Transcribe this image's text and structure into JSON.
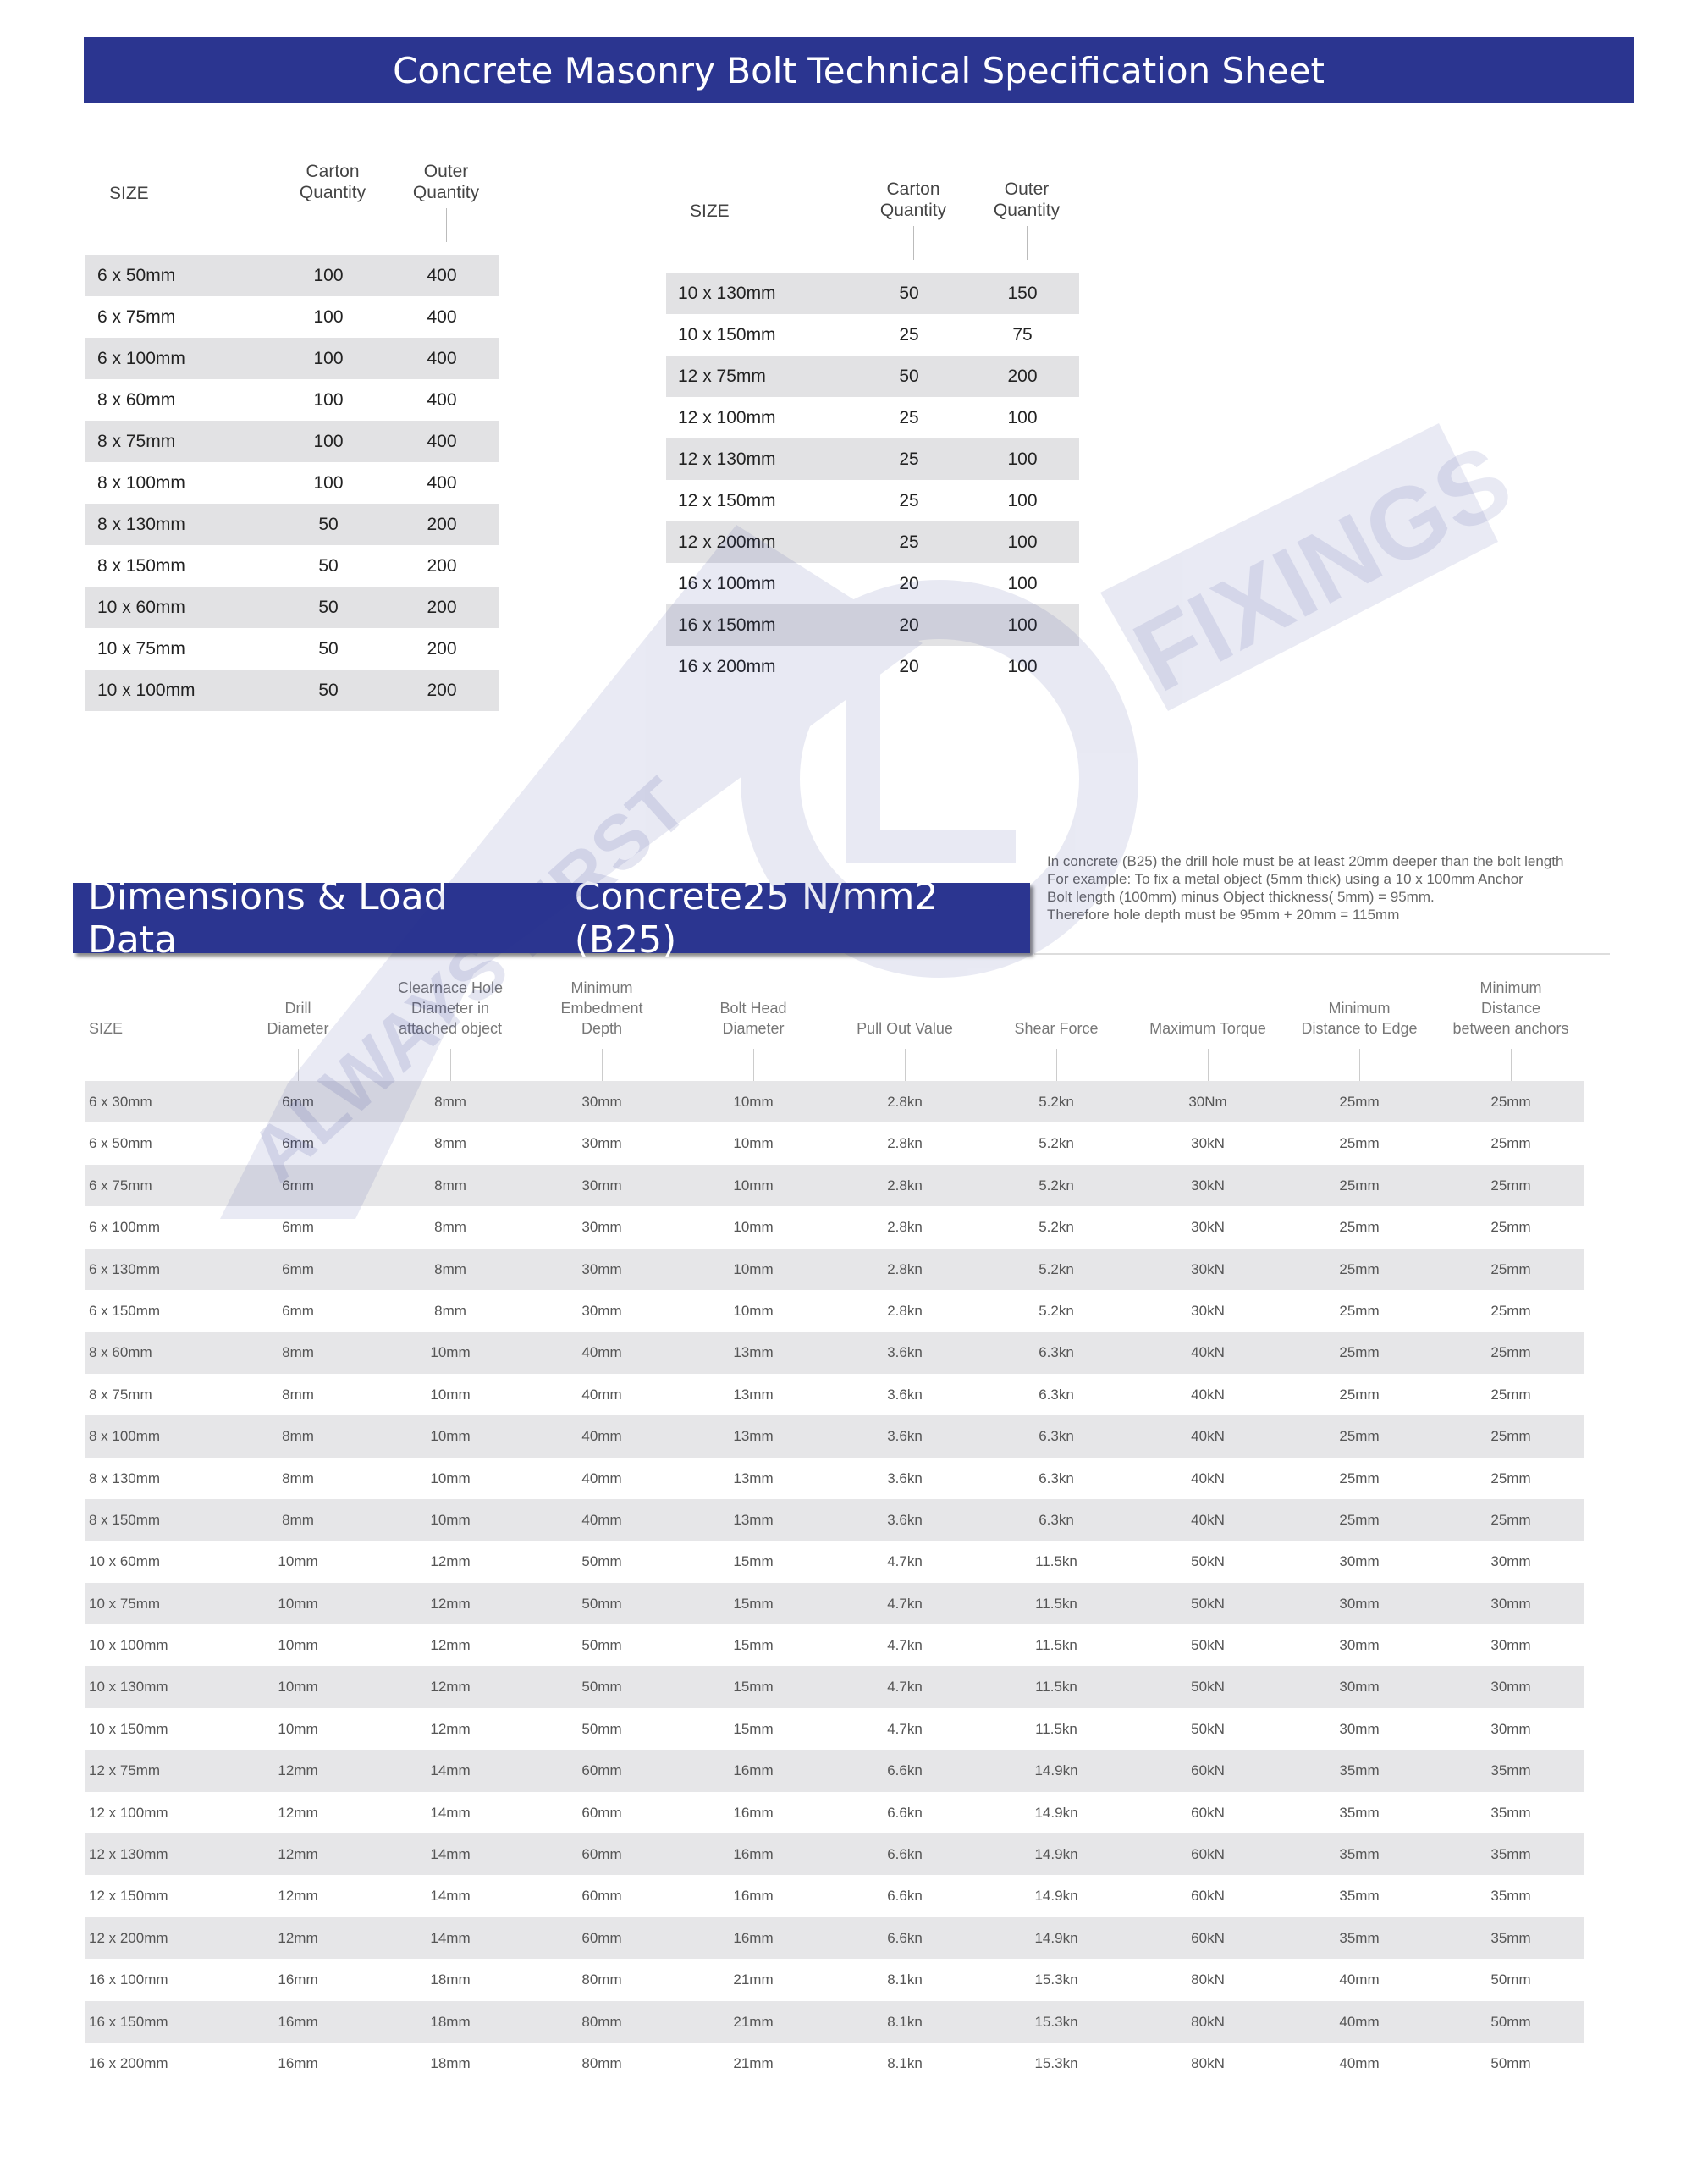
{
  "title": "Concrete Masonry Bolt Technical Specification Sheet",
  "quantity_headers": {
    "size": "SIZE",
    "carton": "Carton\nQuantity",
    "outer": "Outer\nQuantity"
  },
  "quantity_table_left": [
    [
      "6 x 50mm",
      "100",
      "400"
    ],
    [
      "6 x 75mm",
      "100",
      "400"
    ],
    [
      "6 x 100mm",
      "100",
      "400"
    ],
    [
      "8 x 60mm",
      "100",
      "400"
    ],
    [
      "8 x 75mm",
      "100",
      "400"
    ],
    [
      "8 x 100mm",
      "100",
      "400"
    ],
    [
      "8 x 130mm",
      "50",
      "200"
    ],
    [
      "8 x 150mm",
      "50",
      "200"
    ],
    [
      "10 x 60mm",
      "50",
      "200"
    ],
    [
      "10 x 75mm",
      "50",
      "200"
    ],
    [
      "10 x 100mm",
      "50",
      "200"
    ]
  ],
  "quantity_table_right": [
    [
      "10 x 130mm",
      "50",
      "150"
    ],
    [
      "10 x 150mm",
      "25",
      "75"
    ],
    [
      "12 x 75mm",
      "50",
      "200"
    ],
    [
      "12 x 100mm",
      "25",
      "100"
    ],
    [
      "12 x 130mm",
      "25",
      "100"
    ],
    [
      "12 x 150mm",
      "25",
      "100"
    ],
    [
      "12 x 200mm",
      "25",
      "100"
    ],
    [
      "16 x 100mm",
      "20",
      "100"
    ],
    [
      "16 x 150mm",
      "20",
      "100"
    ],
    [
      "16 x 200mm",
      "20",
      "100"
    ]
  ],
  "section": {
    "title": "Dimensions & Load Data",
    "subtitle": "Concrete25 N/mm2 (B25)"
  },
  "note": [
    "In concrete (B25) the drill hole must be at least 20mm deeper than the bolt length",
    "For example: To fix a metal object (5mm thick) using a 10 x 100mm Anchor",
    "Bolt length (100mm) minus Object thickness( 5mm) = 95mm.",
    "Therefore hole depth must be 95mm + 20mm = 115mm"
  ],
  "watermark": {
    "text1": "ALWAYS FIRST",
    "text2": "FIXINGS",
    "color": "#2b3590"
  },
  "load_headers": [
    "SIZE",
    "Drill\nDiameter",
    "Clearnace Hole\nDiameter in\nattached object",
    "Minimum\nEmbedment\nDepth",
    "Bolt Head\nDiameter",
    "Pull Out Value",
    "Shear Force",
    "Maximum Torque",
    "Minimum\nDistance to Edge",
    "Minimum\nDistance\nbetween anchors"
  ],
  "load_rows": [
    [
      "6 x 30mm",
      "6mm",
      "8mm",
      "30mm",
      "10mm",
      "2.8kn",
      "5.2kn",
      "30Nm",
      "25mm",
      "25mm"
    ],
    [
      "6 x 50mm",
      "6mm",
      "8mm",
      "30mm",
      "10mm",
      "2.8kn",
      "5.2kn",
      "30kN",
      "25mm",
      "25mm"
    ],
    [
      "6 x 75mm",
      "6mm",
      "8mm",
      "30mm",
      "10mm",
      "2.8kn",
      "5.2kn",
      "30kN",
      "25mm",
      "25mm"
    ],
    [
      "6 x 100mm",
      "6mm",
      "8mm",
      "30mm",
      "10mm",
      "2.8kn",
      "5.2kn",
      "30kN",
      "25mm",
      "25mm"
    ],
    [
      "6 x 130mm",
      "6mm",
      "8mm",
      "30mm",
      "10mm",
      "2.8kn",
      "5.2kn",
      "30kN",
      "25mm",
      "25mm"
    ],
    [
      "6 x 150mm",
      "6mm",
      "8mm",
      "30mm",
      "10mm",
      "2.8kn",
      "5.2kn",
      "30kN",
      "25mm",
      "25mm"
    ],
    [
      "8 x 60mm",
      "8mm",
      "10mm",
      "40mm",
      "13mm",
      "3.6kn",
      "6.3kn",
      "40kN",
      "25mm",
      "25mm"
    ],
    [
      "8 x 75mm",
      "8mm",
      "10mm",
      "40mm",
      "13mm",
      "3.6kn",
      "6.3kn",
      "40kN",
      "25mm",
      "25mm"
    ],
    [
      "8 x 100mm",
      "8mm",
      "10mm",
      "40mm",
      "13mm",
      "3.6kn",
      "6.3kn",
      "40kN",
      "25mm",
      "25mm"
    ],
    [
      "8 x 130mm",
      "8mm",
      "10mm",
      "40mm",
      "13mm",
      "3.6kn",
      "6.3kn",
      "40kN",
      "25mm",
      "25mm"
    ],
    [
      "8 x 150mm",
      "8mm",
      "10mm",
      "40mm",
      "13mm",
      "3.6kn",
      "6.3kn",
      "40kN",
      "25mm",
      "25mm"
    ],
    [
      "10 x 60mm",
      "10mm",
      "12mm",
      "50mm",
      "15mm",
      "4.7kn",
      "11.5kn",
      "50kN",
      "30mm",
      "30mm"
    ],
    [
      "10 x 75mm",
      "10mm",
      "12mm",
      "50mm",
      "15mm",
      "4.7kn",
      "11.5kn",
      "50kN",
      "30mm",
      "30mm"
    ],
    [
      "10 x 100mm",
      "10mm",
      "12mm",
      "50mm",
      "15mm",
      "4.7kn",
      "11.5kn",
      "50kN",
      "30mm",
      "30mm"
    ],
    [
      "10 x 130mm",
      "10mm",
      "12mm",
      "50mm",
      "15mm",
      "4.7kn",
      "11.5kn",
      "50kN",
      "30mm",
      "30mm"
    ],
    [
      "10 x 150mm",
      "10mm",
      "12mm",
      "50mm",
      "15mm",
      "4.7kn",
      "11.5kn",
      "50kN",
      "30mm",
      "30mm"
    ],
    [
      "12 x 75mm",
      "12mm",
      "14mm",
      "60mm",
      "16mm",
      "6.6kn",
      "14.9kn",
      "60kN",
      "35mm",
      "35mm"
    ],
    [
      "12 x 100mm",
      "12mm",
      "14mm",
      "60mm",
      "16mm",
      "6.6kn",
      "14.9kn",
      "60kN",
      "35mm",
      "35mm"
    ],
    [
      "12 x 130mm",
      "12mm",
      "14mm",
      "60mm",
      "16mm",
      "6.6kn",
      "14.9kn",
      "60kN",
      "35mm",
      "35mm"
    ],
    [
      "12 x 150mm",
      "12mm",
      "14mm",
      "60mm",
      "16mm",
      "6.6kn",
      "14.9kn",
      "60kN",
      "35mm",
      "35mm"
    ],
    [
      "12 x 200mm",
      "12mm",
      "14mm",
      "60mm",
      "16mm",
      "6.6kn",
      "14.9kn",
      "60kN",
      "35mm",
      "35mm"
    ],
    [
      "16 x 100mm",
      "16mm",
      "18mm",
      "80mm",
      "21mm",
      "8.1kn",
      "15.3kn",
      "80kN",
      "40mm",
      "50mm"
    ],
    [
      "16 x 150mm",
      "16mm",
      "18mm",
      "80mm",
      "21mm",
      "8.1kn",
      "15.3kn",
      "80kN",
      "40mm",
      "50mm"
    ],
    [
      "16 x 200mm",
      "16mm",
      "18mm",
      "80mm",
      "21mm",
      "8.1kn",
      "15.3kn",
      "80kN",
      "40mm",
      "50mm"
    ]
  ]
}
